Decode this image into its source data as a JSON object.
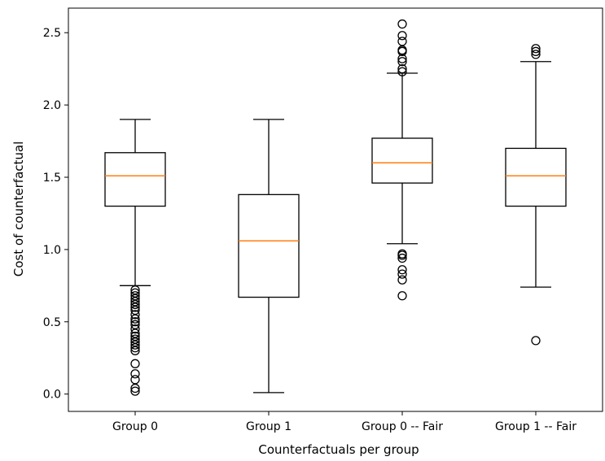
{
  "chart_data": {
    "type": "box",
    "xlabel": "Counterfactuals per group",
    "ylabel": "Cost of counterfactual",
    "ylim": [
      -0.12,
      2.67
    ],
    "yticks": [
      "0.0",
      "0.5",
      "1.0",
      "1.5",
      "2.0",
      "2.5"
    ],
    "grid": false,
    "colors": {
      "box": "#000000",
      "median": "#ff7f0e",
      "outlier": "#000000"
    },
    "boxes": [
      {
        "category": "Group 0",
        "whisker_low": 0.75,
        "q1": 1.3,
        "median": 1.51,
        "q3": 1.67,
        "whisker_high": 1.9,
        "outliers": [
          0.72,
          0.7,
          0.68,
          0.66,
          0.64,
          0.62,
          0.6,
          0.58,
          0.55,
          0.52,
          0.5,
          0.48,
          0.45,
          0.42,
          0.4,
          0.38,
          0.36,
          0.34,
          0.32,
          0.3,
          0.21,
          0.14,
          0.1,
          0.04,
          0.02
        ]
      },
      {
        "category": "Group 1",
        "whisker_low": 0.01,
        "q1": 0.67,
        "median": 1.06,
        "q3": 1.38,
        "whisker_high": 1.9,
        "outliers": []
      },
      {
        "category": "Group 0 -- Fair",
        "whisker_low": 1.04,
        "q1": 1.46,
        "median": 1.6,
        "q3": 1.77,
        "whisker_high": 2.22,
        "outliers": [
          2.56,
          2.48,
          2.44,
          2.38,
          2.37,
          2.32,
          2.3,
          2.25,
          2.23,
          0.97,
          0.96,
          0.94,
          0.86,
          0.83,
          0.79,
          0.68
        ]
      },
      {
        "category": "Group 1 -- Fair",
        "whisker_low": 0.74,
        "q1": 1.3,
        "median": 1.51,
        "q3": 1.7,
        "whisker_high": 2.3,
        "outliers": [
          2.39,
          2.37,
          2.35,
          0.37
        ]
      }
    ]
  }
}
